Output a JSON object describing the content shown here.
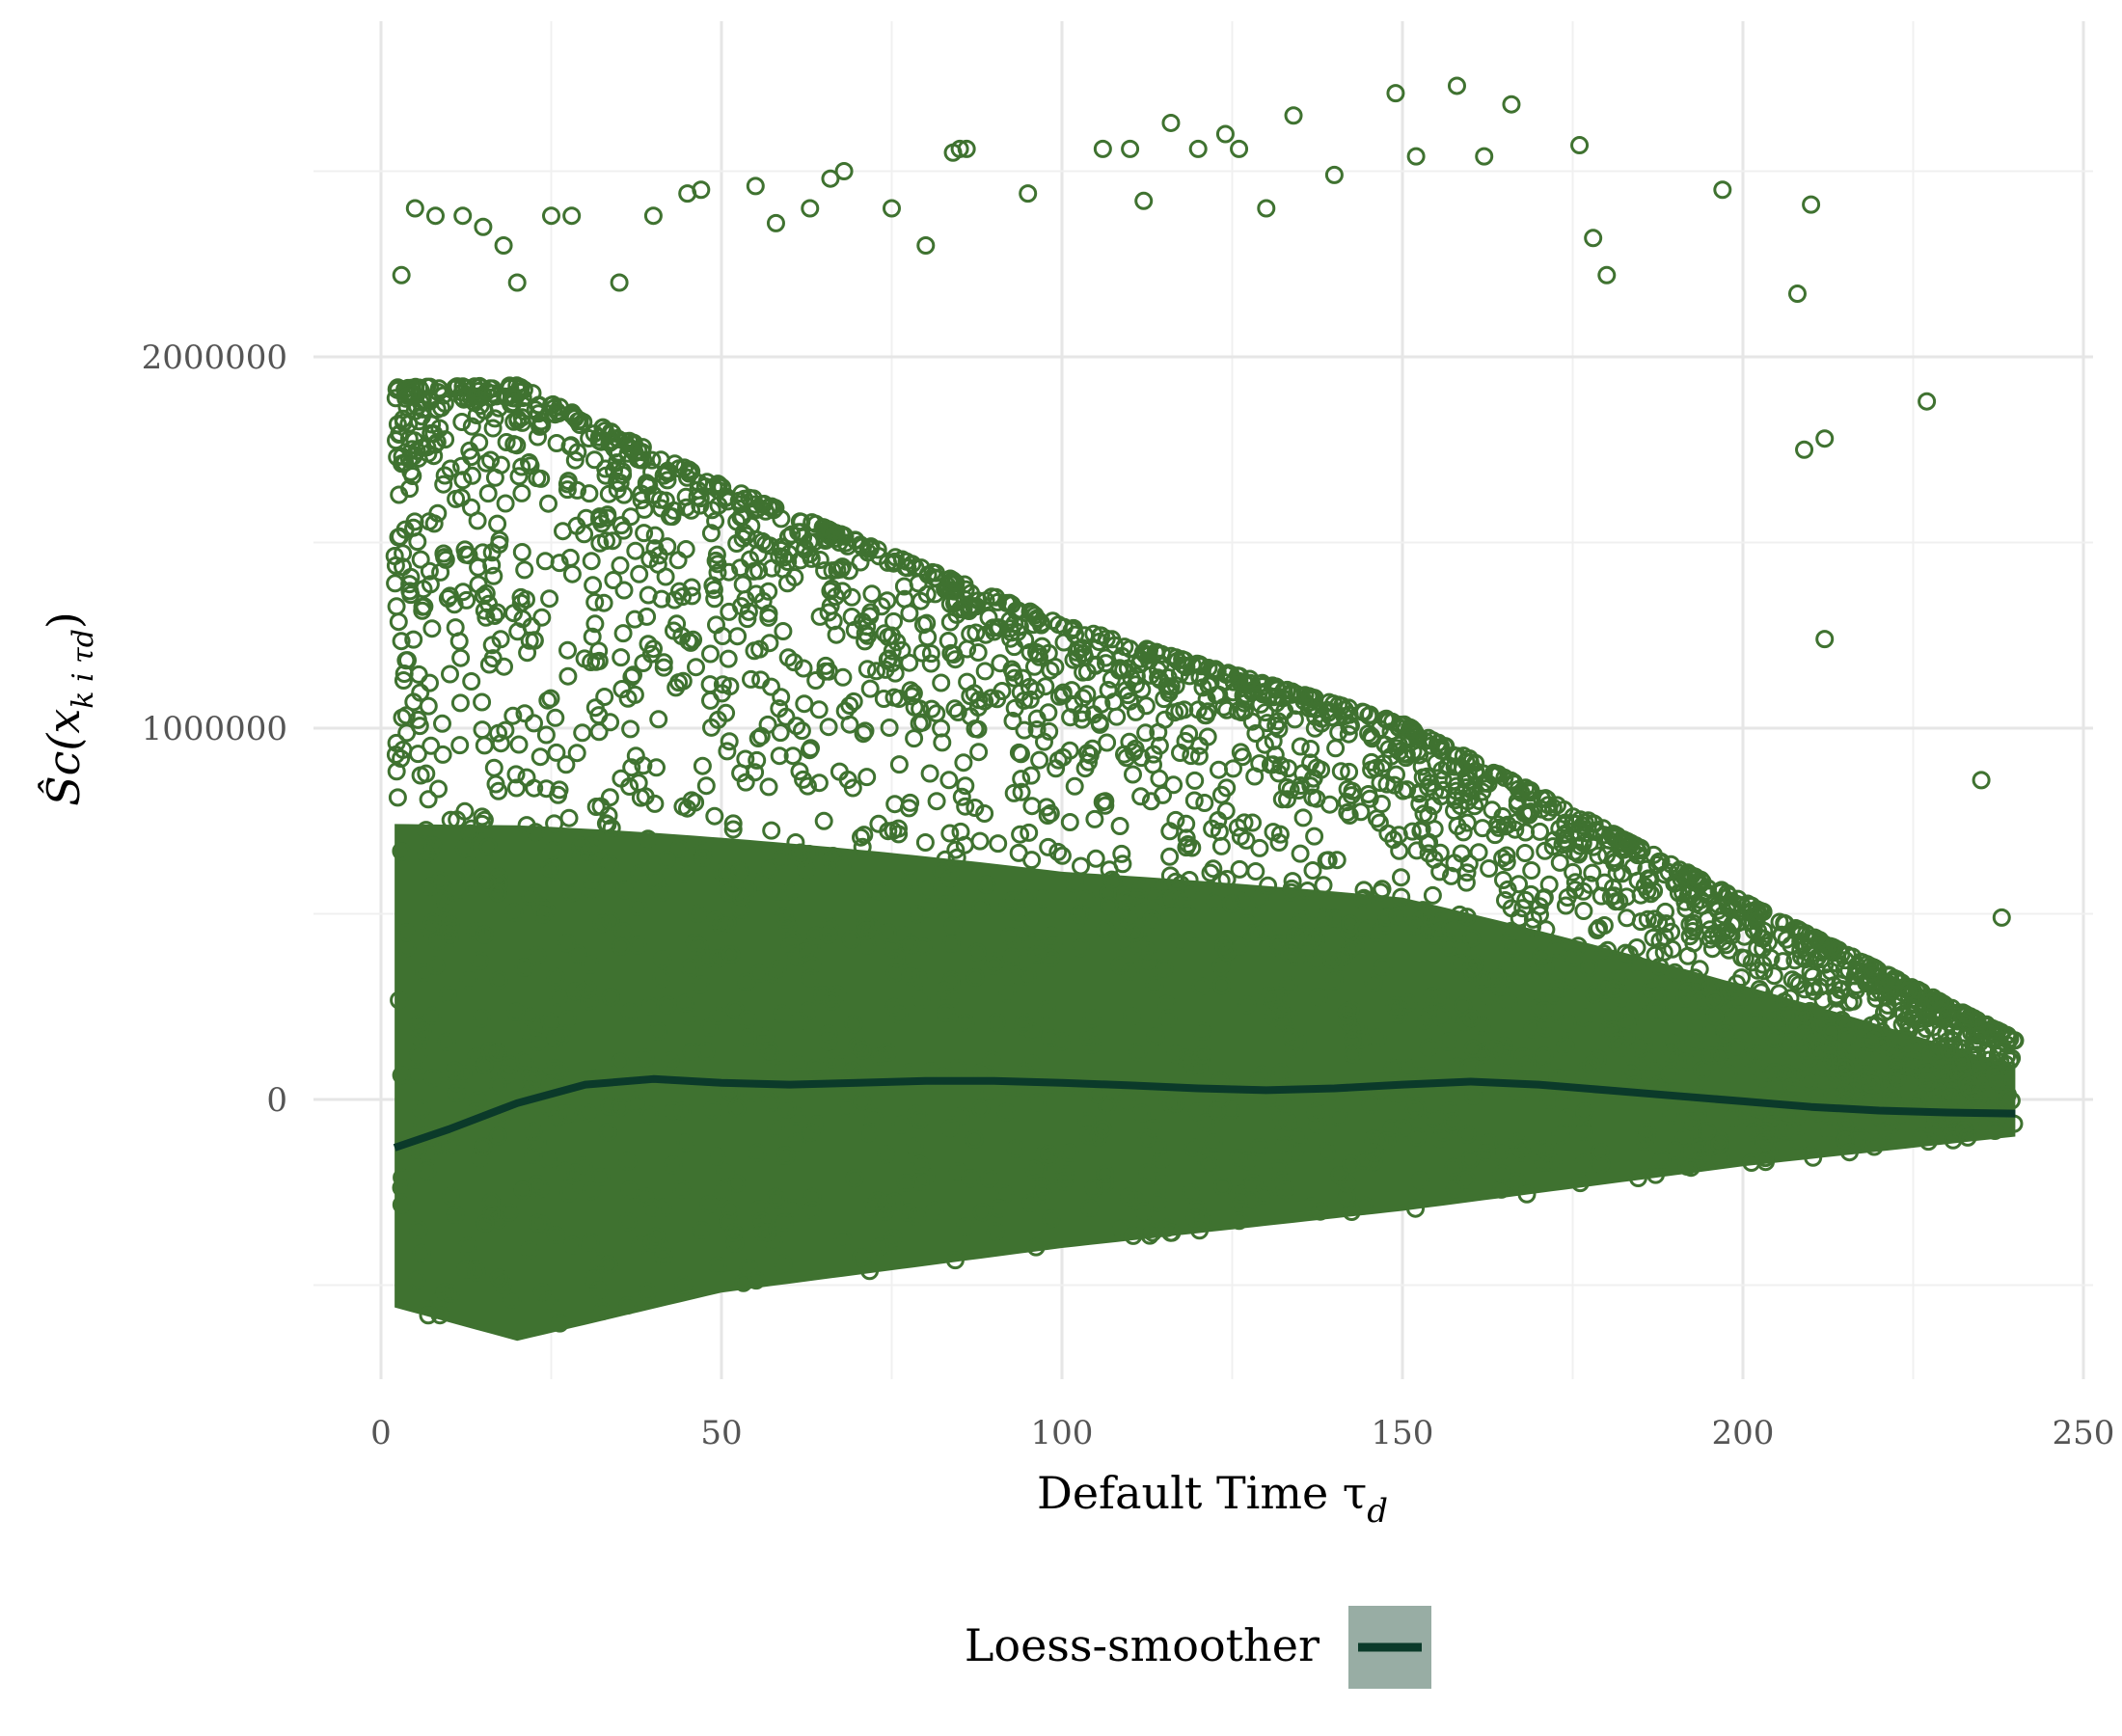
{
  "chart_data": {
    "type": "scatter",
    "xlabel": "Default Time τ",
    "xlabel_sub": "d",
    "ylabel": "Ŝc(x",
    "ylabel_sub": "k i τd",
    "ylabel_close": ")",
    "xlim": [
      0,
      250
    ],
    "ylim": [
      -760000,
      2900000
    ],
    "x_ticks": [
      0,
      50,
      100,
      150,
      200,
      250
    ],
    "y_ticks": [
      0,
      1000000,
      2000000
    ],
    "x_tick_labels": [
      "0",
      "50",
      "100",
      "150",
      "200",
      "250"
    ],
    "y_tick_labels": [
      "0",
      "1000000",
      "2000000"
    ],
    "grid": true,
    "legend_position": "bottom",
    "colors": {
      "points": "#3f7230",
      "smoother": "#0b3a2a",
      "legend_key_bg": "#98ada4",
      "grid": "#e6e6e6"
    },
    "series": [
      {
        "name": "Loess-smoother",
        "type": "line",
        "x": [
          2,
          10,
          20,
          30,
          40,
          50,
          60,
          70,
          80,
          90,
          100,
          110,
          120,
          130,
          140,
          150,
          160,
          170,
          180,
          190,
          200,
          210,
          220,
          230,
          240
        ],
        "y": [
          -130000,
          -80000,
          -10000,
          40000,
          55000,
          45000,
          40000,
          45000,
          50000,
          50000,
          45000,
          38000,
          30000,
          25000,
          30000,
          40000,
          48000,
          40000,
          25000,
          10000,
          -5000,
          -20000,
          -30000,
          -35000,
          -38000
        ]
      }
    ],
    "scatter_outliers": {
      "x": [
        3,
        5,
        8,
        12,
        15,
        18,
        20,
        25,
        28,
        35,
        40,
        45,
        47,
        55,
        58,
        63,
        66,
        68,
        75,
        80,
        84,
        85,
        86,
        95,
        106,
        110,
        112,
        116,
        120,
        124,
        126,
        130,
        134,
        140,
        149,
        152,
        158,
        162,
        166,
        176,
        178,
        180,
        197,
        208,
        210,
        209,
        212,
        212,
        227,
        235,
        238
      ],
      "y": [
        2220000,
        2400000,
        2380000,
        2380000,
        2350000,
        2300000,
        2200000,
        2380000,
        2380000,
        2200000,
        2380000,
        2440000,
        2450000,
        2460000,
        2360000,
        2400000,
        2480000,
        2500000,
        2400000,
        2300000,
        2550000,
        2560000,
        2560000,
        2440000,
        2560000,
        2560000,
        2420000,
        2630000,
        2560000,
        2600000,
        2560000,
        2400000,
        2650000,
        2490000,
        2710000,
        2540000,
        2730000,
        2540000,
        2680000,
        2570000,
        2320000,
        2220000,
        2450000,
        2170000,
        2410000,
        1750000,
        1780000,
        1240000,
        1880000,
        860000,
        490000
      ]
    },
    "scatter_envelope": {
      "x": [
        2,
        20,
        50,
        100,
        150,
        200,
        240
      ],
      "upper": [
        1800000,
        1800000,
        1550000,
        1200000,
        950000,
        500000,
        150000
      ],
      "lower": [
        -560000,
        -650000,
        -520000,
        -400000,
        -300000,
        -180000,
        -100000
      ]
    }
  },
  "legend": {
    "label": "Loess-smoother"
  }
}
